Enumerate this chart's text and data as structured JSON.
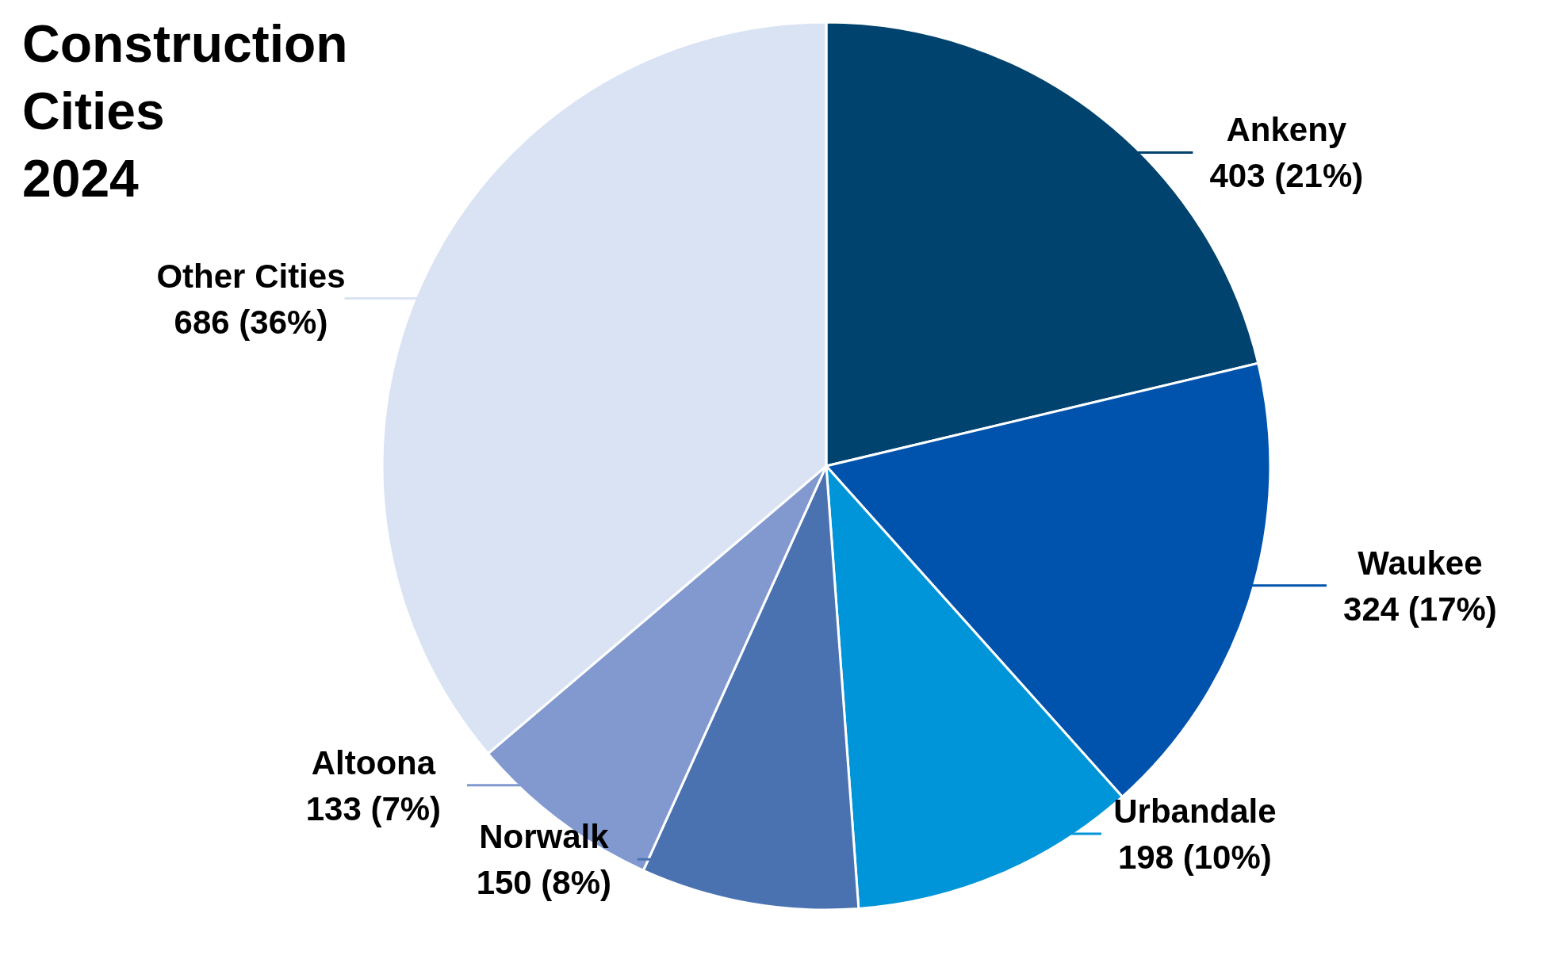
{
  "chart_data": {
    "type": "pie",
    "title": "Construction\nCities\n2024",
    "categories": [
      "Ankeny",
      "Waukee",
      "Urbandale",
      "Norwalk",
      "Altoona",
      "Other Cities"
    ],
    "values": [
      403,
      324,
      198,
      150,
      133,
      686
    ],
    "colors": [
      "#00436e",
      "#0053ad",
      "#0095d9",
      "#4a72b0",
      "#8299cf",
      "#dae3f3"
    ],
    "value_labels": [
      "403 (21%)",
      "324 (17%)",
      "198 (10%)",
      "150 (8%)",
      "133 (7%)",
      "686 (36%)"
    ]
  }
}
